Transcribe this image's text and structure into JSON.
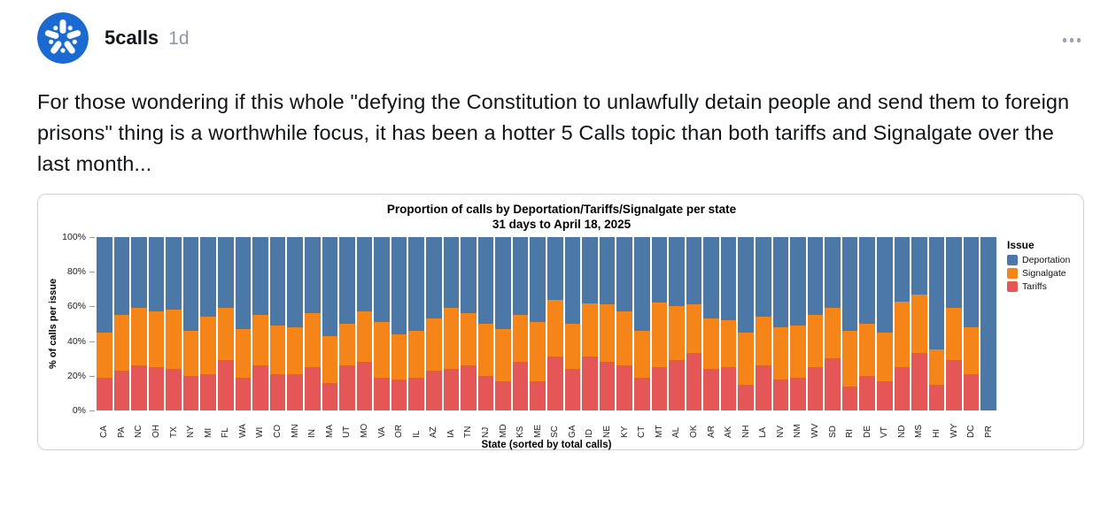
{
  "post": {
    "author": "5calls",
    "timestamp": "1d",
    "body": "For those wondering if this whole \"defying the Constitution to unlawfully detain people and send them to foreign prisons\" thing is a worthwhile focus, it has been a hotter 5 Calls topic than both tariffs and Signalgate over the last month..."
  },
  "icons": {
    "avatar_icon": "star-burst",
    "more_options_icon": "horizontal-ellipsis"
  },
  "colors": {
    "avatar_blue": "#1b6ad1",
    "deportation_blue": "#4c78a8",
    "signalgate_orange": "#f58518",
    "tariffs_red": "#e45756",
    "muted_gray": "#8b98a5"
  },
  "chart_data": {
    "type": "bar",
    "stacked": true,
    "title": "Proportion of calls by Deportation/Tariffs/Signalgate per state",
    "subtitle": "31 days to April 18, 2025",
    "xlabel": "State (sorted by total calls)",
    "ylabel": "% of calls per issue",
    "ylim": [
      0,
      100
    ],
    "yticks": [
      "0%",
      "20%",
      "40%",
      "60%",
      "80%",
      "100%"
    ],
    "legend_title": "Issue",
    "legend_position": "right",
    "legend_order": [
      "Deportation",
      "Signalgate",
      "Tariffs"
    ],
    "categories": [
      "CA",
      "PA",
      "NC",
      "OH",
      "TX",
      "NY",
      "MI",
      "FL",
      "WA",
      "WI",
      "CO",
      "MN",
      "IN",
      "MA",
      "UT",
      "MO",
      "VA",
      "OR",
      "IL",
      "AZ",
      "IA",
      "TN",
      "NJ",
      "MD",
      "KS",
      "ME",
      "SC",
      "GA",
      "ID",
      "NE",
      "KY",
      "CT",
      "MT",
      "AL",
      "OK",
      "AR",
      "AK",
      "NH",
      "LA",
      "NV",
      "NM",
      "WV",
      "SD",
      "RI",
      "DE",
      "VT",
      "ND",
      "MS",
      "HI",
      "WY",
      "DC",
      "PR"
    ],
    "series": [
      {
        "name": "Tariffs",
        "color": "#e45756",
        "values": [
          19,
          23,
          26,
          25,
          24,
          20,
          21,
          29,
          19,
          26,
          21,
          21,
          25,
          16,
          26,
          28,
          19,
          18,
          19,
          23,
          24,
          26,
          20,
          17,
          28,
          17,
          31,
          24,
          31,
          28,
          26,
          19,
          25,
          29,
          33,
          24,
          25,
          15,
          26,
          18,
          19,
          25,
          30,
          14,
          20,
          17,
          25,
          33,
          15,
          29,
          21,
          0
        ]
      },
      {
        "name": "Signalgate",
        "color": "#f58518",
        "values": [
          26,
          32,
          33,
          32,
          34,
          26,
          33,
          30,
          28,
          29,
          28,
          27,
          31,
          27,
          24,
          29,
          32,
          26,
          27,
          30,
          35,
          30,
          30,
          30,
          27,
          34,
          33,
          26,
          31,
          33,
          31,
          27,
          37,
          31,
          28,
          29,
          27,
          30,
          28,
          30,
          30,
          30,
          29,
          32,
          30,
          28,
          38,
          34,
          20,
          30,
          27,
          0
        ]
      },
      {
        "name": "Deportation",
        "color": "#4c78a8",
        "values": [
          55,
          45,
          41,
          43,
          42,
          54,
          46,
          41,
          53,
          45,
          51,
          52,
          44,
          57,
          50,
          43,
          49,
          56,
          54,
          47,
          41,
          44,
          50,
          53,
          45,
          49,
          36,
          50,
          38,
          39,
          43,
          54,
          38,
          40,
          39,
          47,
          48,
          55,
          46,
          52,
          51,
          45,
          41,
          54,
          50,
          55,
          37,
          33,
          65,
          41,
          52,
          100
        ]
      }
    ]
  }
}
